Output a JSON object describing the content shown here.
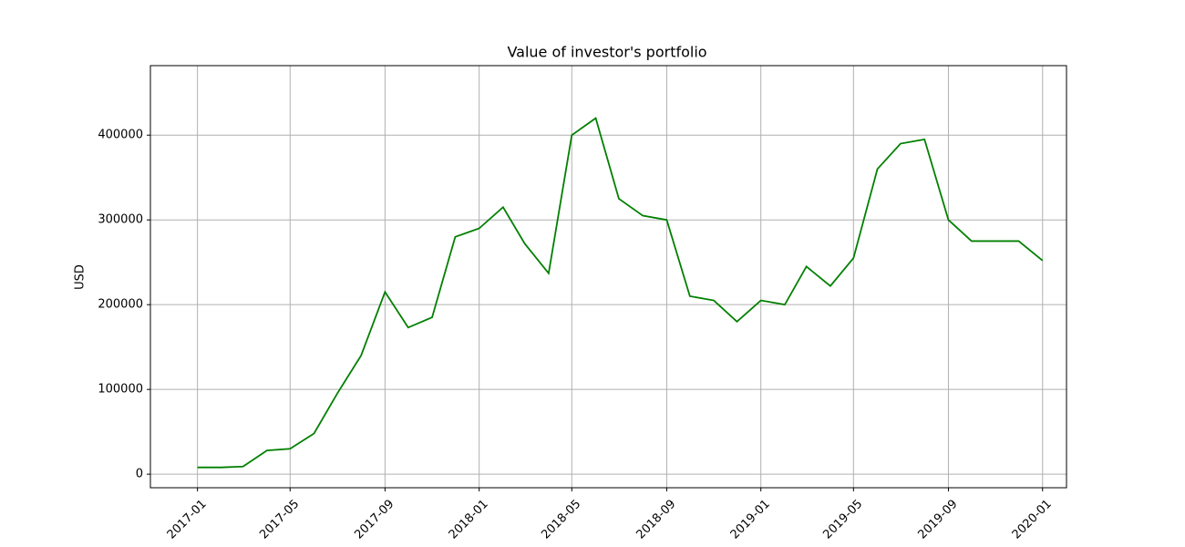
{
  "chart_data": {
    "type": "line",
    "title": "Value of investor's portfolio",
    "y_label": "USD",
    "x": [
      "2017-01",
      "2017-02",
      "2017-03",
      "2017-04",
      "2017-05",
      "2017-06",
      "2017-07",
      "2017-08",
      "2017-09",
      "2017-10",
      "2017-11",
      "2017-12",
      "2018-01",
      "2018-02",
      "2018-03",
      "2018-04",
      "2018-05",
      "2018-06",
      "2018-07",
      "2018-08",
      "2018-09",
      "2018-10",
      "2018-11",
      "2018-12",
      "2019-01",
      "2019-02",
      "2019-03",
      "2019-04",
      "2019-05",
      "2019-06",
      "2019-07",
      "2019-08",
      "2019-09",
      "2019-10",
      "2019-11",
      "2019-12",
      "2020-01"
    ],
    "series": [
      {
        "color": "#008000",
        "values": [
          8000,
          8000,
          9000,
          28000,
          30000,
          48000,
          95000,
          140000,
          215000,
          173000,
          185000,
          280000,
          290000,
          315000,
          272000,
          237000,
          400000,
          420000,
          325000,
          305000,
          300000,
          210000,
          205000,
          180000,
          205000,
          200000,
          245000,
          222000,
          255000,
          360000,
          390000,
          395000,
          300000,
          275000,
          275000,
          275000,
          252000
        ]
      }
    ],
    "xlim": [
      "2016-11",
      "2020-02"
    ],
    "xticks": [
      "2017-01",
      "2017-05",
      "2017-09",
      "2018-01",
      "2018-05",
      "2018-09",
      "2019-01",
      "2019-05",
      "2019-09",
      "2020-01"
    ],
    "ylim": [
      -16000,
      482000
    ],
    "yticks": [
      0,
      100000,
      200000,
      300000,
      400000
    ],
    "grid": true
  }
}
